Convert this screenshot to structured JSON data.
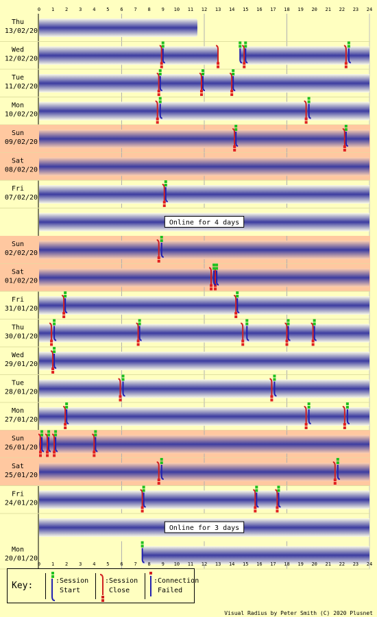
{
  "chart_data": {
    "type": "timeline",
    "x_axis": {
      "min": 0,
      "max": 24,
      "ticks": [
        0,
        1,
        2,
        3,
        4,
        5,
        6,
        7,
        8,
        9,
        10,
        11,
        12,
        13,
        14,
        15,
        16,
        17,
        18,
        19,
        20,
        21,
        22,
        23,
        24
      ]
    },
    "rows": [
      {
        "day": "Thu",
        "date": "13/02/20",
        "weekend": false,
        "online": [
          [
            0,
            11.5
          ]
        ],
        "starts": [],
        "closes": [],
        "failed": []
      },
      {
        "day": "Wed",
        "date": "12/02/20",
        "weekend": false,
        "online": [
          [
            0,
            13
          ],
          [
            14.6,
            24
          ]
        ],
        "starts": [
          9,
          14.6,
          15,
          22.5
        ],
        "closes": [
          8.9,
          13,
          14.9,
          22.3
        ],
        "failed": []
      },
      {
        "day": "Tue",
        "date": "11/02/20",
        "weekend": false,
        "online": [
          [
            0,
            24
          ]
        ],
        "starts": [
          8.8,
          11.9,
          14.1
        ],
        "closes": [
          8.7,
          11.8,
          14.0
        ],
        "failed": []
      },
      {
        "day": "Mon",
        "date": "10/02/20",
        "weekend": false,
        "online": [
          [
            0,
            24
          ]
        ],
        "starts": [
          8.8,
          19.6
        ],
        "closes": [
          8.6,
          19.4
        ],
        "failed": []
      },
      {
        "day": "Sun",
        "date": "09/02/20",
        "weekend": true,
        "online": [
          [
            0,
            24
          ]
        ],
        "starts": [
          14.3,
          22.3
        ],
        "closes": [
          14.2,
          22.2
        ],
        "failed": []
      },
      {
        "day": "Sat",
        "date": "08/02/20",
        "weekend": true,
        "online": [
          [
            0,
            24
          ]
        ],
        "starts": [],
        "closes": [],
        "failed": []
      },
      {
        "day": "Fri",
        "date": "07/02/20",
        "weekend": false,
        "online": [
          [
            0,
            24
          ]
        ],
        "starts": [
          9.2
        ],
        "closes": [
          9.1
        ],
        "failed": []
      },
      {
        "gap": "Online for 4 days"
      },
      {
        "day": "Sun",
        "date": "02/02/20",
        "weekend": true,
        "online": [
          [
            0,
            24
          ]
        ],
        "starts": [
          8.9
        ],
        "closes": [
          8.7
        ],
        "failed": []
      },
      {
        "day": "Sat",
        "date": "01/02/20",
        "weekend": true,
        "online": [
          [
            0,
            24
          ]
        ],
        "starts": [
          12.7,
          12.9
        ],
        "closes": [
          12.5,
          12.8
        ],
        "failed": []
      },
      {
        "day": "Fri",
        "date": "31/01/20",
        "weekend": false,
        "online": [
          [
            0,
            24
          ]
        ],
        "starts": [
          1.9,
          14.4
        ],
        "closes": [
          1.8,
          14.3
        ],
        "failed": []
      },
      {
        "day": "Thu",
        "date": "30/01/20",
        "weekend": false,
        "online": [
          [
            0,
            24
          ]
        ],
        "starts": [
          1.1,
          7.3,
          15.1,
          18.1,
          20
        ],
        "closes": [
          0.9,
          7.2,
          14.8,
          18.0,
          19.9
        ],
        "failed": []
      },
      {
        "day": "Wed",
        "date": "29/01/20",
        "weekend": false,
        "online": [
          [
            0,
            24
          ]
        ],
        "starts": [
          1.1
        ],
        "closes": [
          1.0
        ],
        "failed": []
      },
      {
        "day": "Tue",
        "date": "28/01/20",
        "weekend": false,
        "online": [
          [
            0,
            24
          ]
        ],
        "starts": [
          6.1,
          17.1
        ],
        "closes": [
          5.9,
          16.9
        ],
        "failed": []
      },
      {
        "day": "Mon",
        "date": "27/01/20",
        "weekend": false,
        "online": [
          [
            0,
            24
          ]
        ],
        "starts": [
          2,
          19.6,
          22.4
        ],
        "closes": [
          1.9,
          19.4,
          22.2
        ],
        "failed": []
      },
      {
        "day": "Sun",
        "date": "26/01/20",
        "weekend": true,
        "online": [
          [
            0,
            24
          ]
        ],
        "starts": [
          0.2,
          0.7,
          1.2,
          4.1
        ],
        "closes": [
          0.1,
          0.6,
          1.1,
          4.0
        ],
        "failed": []
      },
      {
        "day": "Sat",
        "date": "25/01/20",
        "weekend": true,
        "online": [
          [
            0,
            24
          ]
        ],
        "starts": [
          8.9,
          21.7
        ],
        "closes": [
          8.7,
          21.5
        ],
        "failed": []
      },
      {
        "day": "Fri",
        "date": "24/01/20",
        "weekend": false,
        "online": [
          [
            0,
            24
          ]
        ],
        "starts": [
          7.6,
          15.8,
          17.4
        ],
        "closes": [
          7.5,
          15.7,
          17.3
        ],
        "failed": []
      },
      {
        "gap": "Online for 3 days"
      },
      {
        "day": "Mon",
        "date": "20/01/20",
        "weekend": false,
        "online": [
          [
            7.5,
            24
          ]
        ],
        "starts": [
          7.5
        ],
        "closes": [],
        "failed": []
      }
    ]
  },
  "key": {
    "title": "Key:",
    "session_start": ":Session\n Start",
    "session_close": ":Session\n Close",
    "connection_failed": ":Connection\n Failed"
  },
  "footer": "Visual Radius by Peter Smith (C) 2020 Plusnet",
  "colors": {
    "background": "#ffffc0",
    "weekend": "#ffc8a0",
    "bar_mid": "#3c3ca0",
    "bar_edge": "#fffff0",
    "start_green": "#20c020",
    "close_red": "#e02020"
  }
}
